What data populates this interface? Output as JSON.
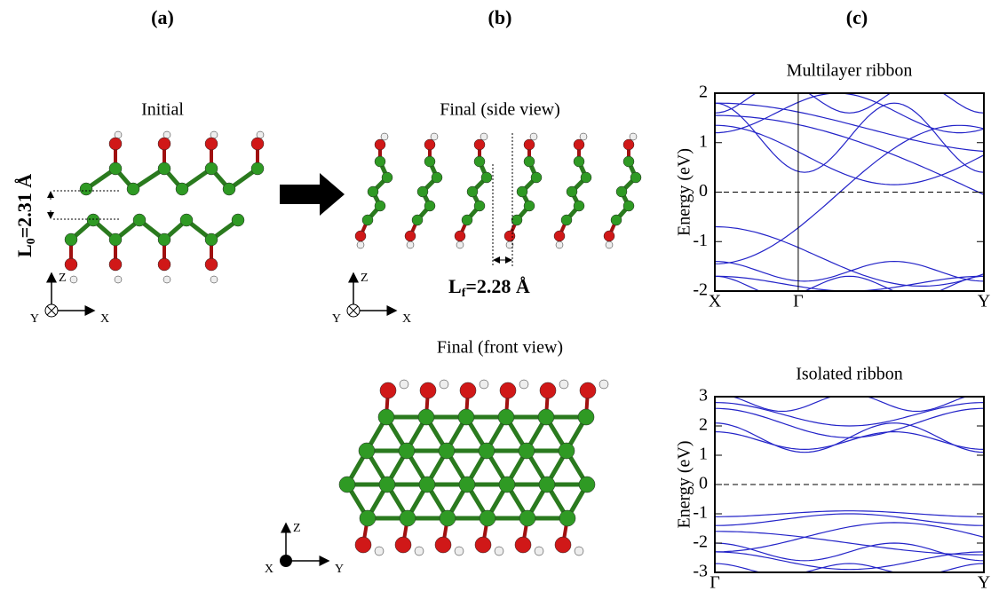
{
  "panel_labels": [
    "(a)",
    "(b)",
    "(c)"
  ],
  "initial": {
    "title": "Initial",
    "distance": {
      "symbol": "L",
      "subscript": "0",
      "value": "=2.31 Å"
    },
    "axes": {
      "up": "Z",
      "left": "Y",
      "right": "X"
    }
  },
  "side_view": {
    "title": "Final (side view)",
    "distance": {
      "symbol": "L",
      "subscript": "f",
      "value": "=2.28 Å"
    },
    "axes": {
      "up": "Z",
      "left": "Y",
      "right": "X"
    }
  },
  "front_view": {
    "title": "Final (front view)",
    "axes": {
      "up": "Z",
      "left": "X",
      "right": "Y"
    }
  },
  "plots": [
    {
      "title": "Multilayer ribbon",
      "ylabel": "Energy (eV)",
      "ylim": [
        -2,
        2
      ],
      "yticks": [
        -2,
        -1,
        0,
        1,
        2
      ],
      "kpoints": [
        "X",
        "Γ",
        "Y"
      ]
    },
    {
      "title": "Isolated ribbon",
      "ylabel": "Energy (eV)",
      "ylim": [
        -3,
        3
      ],
      "yticks": [
        -3,
        -2,
        -1,
        0,
        1,
        2,
        3
      ],
      "kpoints": [
        "Γ",
        "Y"
      ]
    }
  ]
}
